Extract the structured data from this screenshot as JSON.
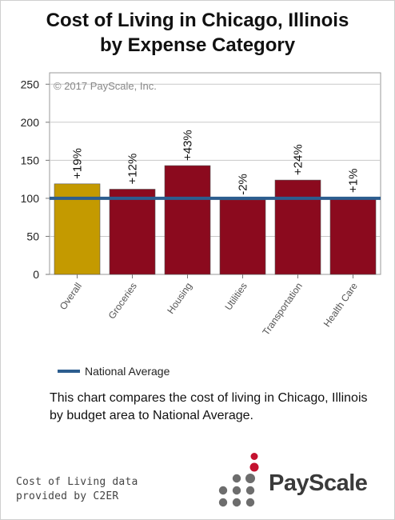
{
  "title_line1": "Cost of Living in Chicago, Illinois",
  "title_line2": "by Expense Category",
  "chart_data": {
    "type": "bar",
    "watermark": "© 2017 PayScale, Inc.",
    "categories": [
      "Overall",
      "Groceries",
      "Housing",
      "Utilities",
      "Transportation",
      "Health Care"
    ],
    "values": [
      119,
      112,
      143,
      98,
      124,
      101
    ],
    "data_labels": [
      "+19%",
      "+12%",
      "+43%",
      "-2%",
      "+24%",
      "+1%"
    ],
    "bar_colors": [
      "#c49a00",
      "#8b0a1e",
      "#8b0a1e",
      "#8b0a1e",
      "#8b0a1e",
      "#8b0a1e"
    ],
    "reference_line": {
      "value": 100,
      "name": "National Average",
      "color": "#2c5d8f"
    },
    "yticks": [
      0,
      50,
      100,
      150,
      200,
      250
    ],
    "ylim": [
      0,
      265
    ],
    "grid": true,
    "legend_position": "bottom-left"
  },
  "legend": {
    "label": "National Average",
    "color": "#2c5d8f"
  },
  "description": "This chart compares the cost of living in Chicago, Illinois by budget area to National Average.",
  "credit_line1": "Cost of Living data",
  "credit_line2": "provided by C2ER",
  "logo_text": "PayScale",
  "logo_dot_color": "#6d6d6d",
  "logo_accent_color": "#c4122f"
}
